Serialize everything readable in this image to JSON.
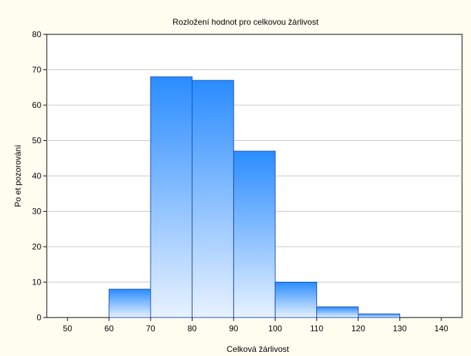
{
  "chart_data": {
    "type": "bar",
    "title": "Rozložení hodnot pro celkovou žárlivost",
    "xlabel": "Celková žárlivost",
    "ylabel": "Po et pozorování",
    "bins": [
      {
        "from": 60,
        "to": 70,
        "count": 8
      },
      {
        "from": 70,
        "to": 80,
        "count": 68
      },
      {
        "from": 80,
        "to": 90,
        "count": 67
      },
      {
        "from": 90,
        "to": 100,
        "count": 47
      },
      {
        "from": 100,
        "to": 110,
        "count": 10
      },
      {
        "from": 110,
        "to": 120,
        "count": 3
      },
      {
        "from": 120,
        "to": 130,
        "count": 1
      }
    ],
    "xlim": [
      45,
      145
    ],
    "ylim": [
      0,
      80
    ],
    "xticks": [
      "50",
      "60",
      "70",
      "80",
      "90",
      "100",
      "110",
      "120",
      "130",
      "140"
    ],
    "yticks": [
      "0",
      "10",
      "20",
      "30",
      "40",
      "50",
      "60",
      "70",
      "80"
    ],
    "grid": "horizontal",
    "colors": {
      "bar_top": "#2a8cff",
      "bar_bottom": "#e8f2ff",
      "bar_edge": "#1a4fc0",
      "background": "#fffdf0",
      "plot_background": "#ffffff",
      "grid": "#c8c8c8"
    }
  }
}
